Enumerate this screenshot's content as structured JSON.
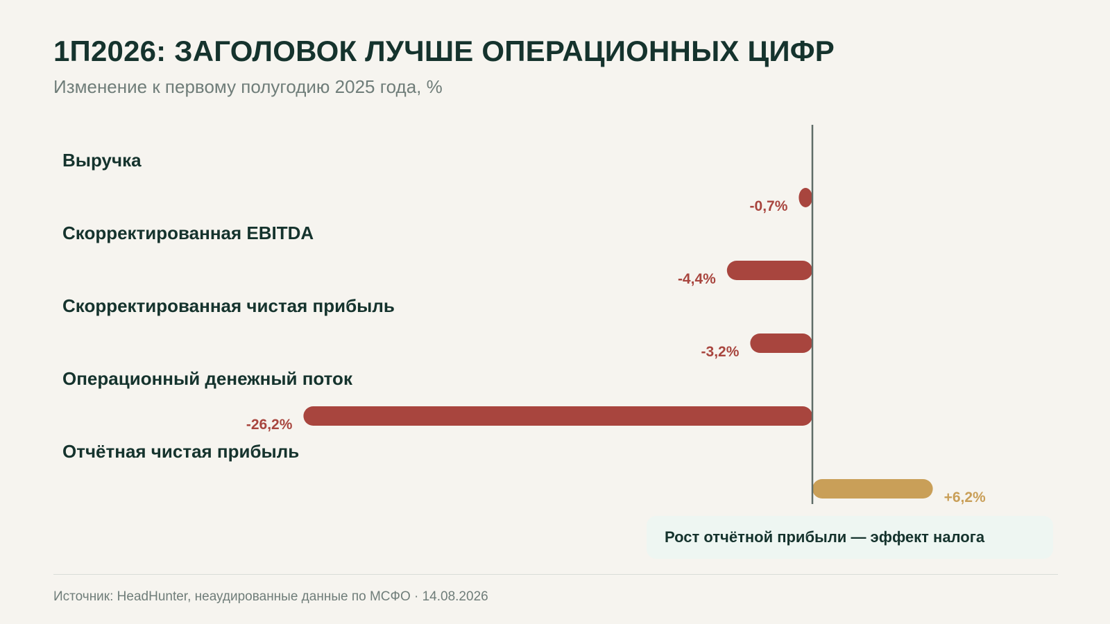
{
  "header": {
    "title": "1П2026: ЗАГОЛОВОК ЛУЧШЕ ОПЕРАЦИОННЫХ ЦИФР",
    "subtitle": "Изменение к первому полугодию 2025 года, %"
  },
  "chart_data": {
    "type": "bar",
    "orientation": "horizontal",
    "categories": [
      "Выручка",
      "Скорректированная EBITDA",
      "Скорректированная чистая прибыль",
      "Операционный денежный поток",
      "Отчётная чистая прибыль"
    ],
    "values": [
      -0.7,
      -4.4,
      -3.2,
      -26.2,
      6.2
    ],
    "value_labels": [
      "-0,7%",
      "-4,4%",
      "-3,2%",
      "-26,2%",
      "+6,2%"
    ],
    "grid": false,
    "baseline": 0,
    "colors": {
      "negative": "#a8453e",
      "positive": "#c99f58",
      "axis": "#5f6d68",
      "category_text": "#15332d"
    }
  },
  "callout": {
    "text": "Рост отчётной прибыли — эффект налога"
  },
  "footer": {
    "source": "Источник: HeadHunter, неаудированные данные по МСФО · 14.08.2026"
  }
}
